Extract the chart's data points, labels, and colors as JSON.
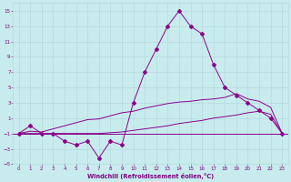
{
  "xlabel": "Windchill (Refroidissement éolien,°C)",
  "background_color": "#c8ecee",
  "grid_color": "#b0d8da",
  "line_color": "#8b008b",
  "xlim": [
    -0.5,
    23.5
  ],
  "ylim": [
    -5,
    16
  ],
  "xticks": [
    0,
    1,
    2,
    3,
    4,
    5,
    6,
    7,
    8,
    9,
    10,
    11,
    12,
    13,
    14,
    15,
    16,
    17,
    18,
    19,
    20,
    21,
    22,
    23
  ],
  "yticks": [
    -5,
    -3,
    -1,
    1,
    3,
    5,
    7,
    9,
    11,
    13,
    15
  ],
  "main_x": [
    0,
    1,
    2,
    3,
    4,
    5,
    6,
    7,
    8,
    9,
    10,
    11,
    12,
    13,
    14,
    15,
    16,
    17,
    18,
    19,
    20,
    21,
    22,
    23
  ],
  "main_y": [
    -1,
    0,
    -1,
    -1,
    -2,
    -2.5,
    -2,
    -4.2,
    -2,
    -2.5,
    3,
    7,
    10,
    13,
    15,
    13,
    12,
    8,
    5,
    4,
    3,
    2,
    1,
    -1
  ],
  "upper_line_x": [
    0,
    1,
    2,
    3,
    4,
    5,
    6,
    7,
    8,
    9,
    10,
    11,
    12,
    13,
    14,
    15,
    16,
    17,
    18,
    19,
    20,
    21,
    22,
    23
  ],
  "upper_line_y": [
    -1,
    -0.7,
    -0.8,
    -0.4,
    0.0,
    0.4,
    0.8,
    0.9,
    1.3,
    1.7,
    1.9,
    2.3,
    2.6,
    2.9,
    3.1,
    3.2,
    3.4,
    3.5,
    3.7,
    4.2,
    3.5,
    3.2,
    2.4,
    -1
  ],
  "lower_line_x": [
    0,
    1,
    2,
    3,
    4,
    5,
    6,
    7,
    8,
    9,
    10,
    11,
    12,
    13,
    14,
    15,
    16,
    17,
    18,
    19,
    20,
    21,
    22,
    23
  ],
  "lower_line_y": [
    -1,
    -1,
    -1,
    -1,
    -1,
    -1,
    -1,
    -1,
    -0.9,
    -0.8,
    -0.6,
    -0.4,
    -0.2,
    0.0,
    0.3,
    0.5,
    0.7,
    1.0,
    1.2,
    1.4,
    1.7,
    1.9,
    1.5,
    -1
  ],
  "hline_y": -1,
  "font_color": "#800080",
  "tick_fontsize": 4.0,
  "xlabel_fontsize": 4.8,
  "lw": 0.7,
  "ms": 2.0
}
